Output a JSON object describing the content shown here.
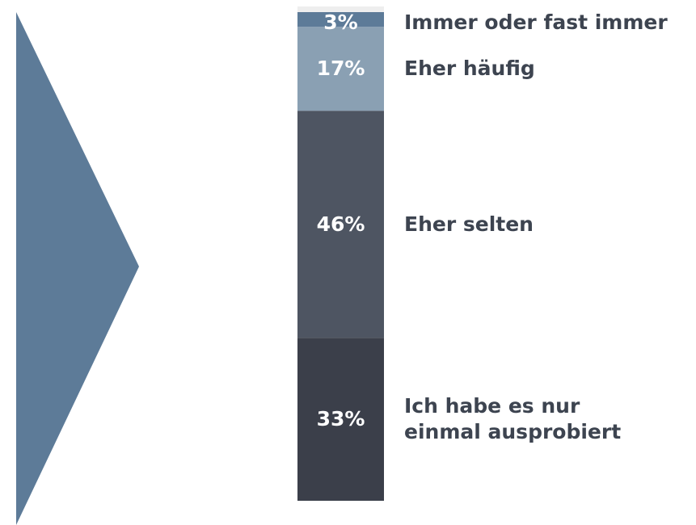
{
  "chart_data": {
    "type": "bar",
    "stacked": true,
    "series": [
      {
        "name": "Immer oder fast immer",
        "color": "#5d7b98",
        "values": [
          3
        ],
        "value_labels": [
          "3%"
        ]
      },
      {
        "name": "Eher häufig",
        "color": "#8aa0b3",
        "values": [
          17
        ],
        "value_labels": [
          "17%"
        ]
      },
      {
        "name": "Eher selten",
        "color": "#4e5562",
        "values": [
          46
        ],
        "value_labels": [
          "46%"
        ]
      },
      {
        "name": "Ich habe es nur\neinmal ausprobiert",
        "color": "#3b3f4a",
        "values": [
          33
        ],
        "value_labels": [
          "33%"
        ]
      }
    ]
  }
}
